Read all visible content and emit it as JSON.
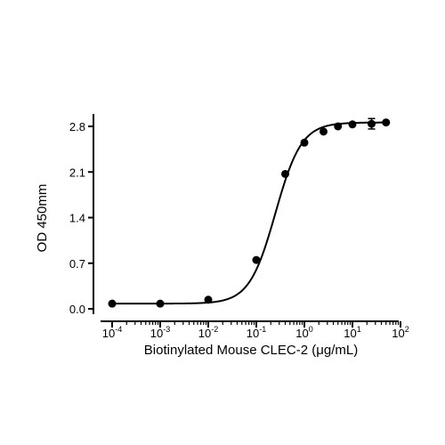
{
  "chart_data": {
    "type": "scatter",
    "title": "",
    "xlabel": "Biotinylated Mouse CLEC-2 (μg/mL)",
    "ylabel": "OD 450mm",
    "x_scale": "log",
    "xlim": [
      0.0001,
      100
    ],
    "ylim": [
      0,
      2.8
    ],
    "x_ticks": [
      {
        "value": 0.0001,
        "base": "10",
        "exp": "-4"
      },
      {
        "value": 0.001,
        "base": "10",
        "exp": "-3"
      },
      {
        "value": 0.01,
        "base": "10",
        "exp": "-2"
      },
      {
        "value": 0.1,
        "base": "10",
        "exp": "-1"
      },
      {
        "value": 1,
        "base": "10",
        "exp": "0"
      },
      {
        "value": 10,
        "base": "10",
        "exp": "1"
      },
      {
        "value": 100,
        "base": "10",
        "exp": "2"
      }
    ],
    "y_ticks": [
      {
        "value": 0.0,
        "label": "0.0"
      },
      {
        "value": 0.7,
        "label": "0.7"
      },
      {
        "value": 1.4,
        "label": "1.4"
      },
      {
        "value": 2.1,
        "label": "2.1"
      },
      {
        "value": 2.8,
        "label": "2.8"
      }
    ],
    "grid": false,
    "series": [
      {
        "color": "#000000",
        "points": [
          {
            "x": 0.0001,
            "y": 0.08
          },
          {
            "x": 0.001,
            "y": 0.08
          },
          {
            "x": 0.01,
            "y": 0.14
          },
          {
            "x": 0.1,
            "y": 0.75
          },
          {
            "x": 0.4,
            "y": 2.07
          },
          {
            "x": 1.0,
            "y": 2.55
          },
          {
            "x": 2.5,
            "y": 2.72
          },
          {
            "x": 5.0,
            "y": 2.8
          },
          {
            "x": 10.0,
            "y": 2.83
          },
          {
            "x": 25.0,
            "y": 2.84,
            "err": 0.08
          },
          {
            "x": 50.0,
            "y": 2.86
          }
        ],
        "fit": {
          "bottom": 0.08,
          "top": 2.86,
          "ec50": 0.25,
          "hill": 1.6
        }
      }
    ]
  }
}
